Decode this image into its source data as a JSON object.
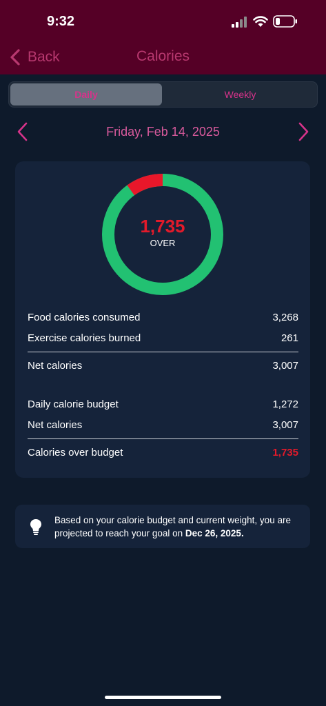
{
  "status_bar": {
    "time": "9:32",
    "icons": [
      "cellular-signal-icon",
      "wifi-icon",
      "battery-icon"
    ]
  },
  "nav": {
    "back_label": "Back",
    "title": "Calories"
  },
  "tabs": {
    "daily_label": "Daily",
    "weekly_label": "Weekly",
    "selected": "Daily"
  },
  "date": {
    "label": "Friday, Feb 14, 2025"
  },
  "summary": {
    "donut_value": "1,735",
    "donut_label": "OVER",
    "over_fraction": 0.1,
    "rows": {
      "food_label": "Food calories consumed",
      "food_value": "3,268",
      "exercise_label": "Exercise calories burned",
      "exercise_value": "261",
      "net_label": "Net calories",
      "net_value": "3,007",
      "budget_label": "Daily calorie budget",
      "budget_value": "1,272",
      "net2_label": "Net calories",
      "net2_value": "3,007",
      "over_label": "Calories over budget",
      "over_value": "1,735"
    }
  },
  "tip": {
    "text_prefix": "Based on your calorie budget and current weight, you are projected to reach your goal on ",
    "goal_date": "Dec 26, 2025."
  },
  "colors": {
    "header_bg": "#550026",
    "accent_pink": "#d6338a",
    "donut_green": "#22c172",
    "donut_red": "#e8172a",
    "over_red": "#e31a2a"
  }
}
